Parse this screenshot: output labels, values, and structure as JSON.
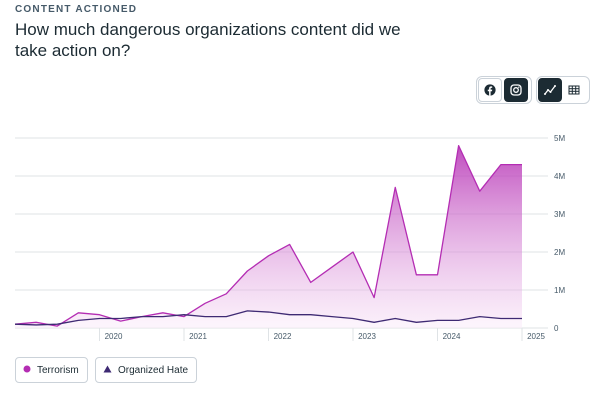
{
  "eyebrow": "CONTENT ACTIONED",
  "title": "How much dangerous organizations content did we take action on?",
  "controls": {
    "platform_facebook_icon": "facebook-icon",
    "platform_instagram_icon": "instagram-icon",
    "view_line_icon": "line-chart-icon",
    "view_table_icon": "table-icon"
  },
  "colors": {
    "terrorism": "#b42db3",
    "organized_hate": "#3e2a73",
    "grid": "#dfe3e6"
  },
  "chart_data": {
    "type": "area",
    "title": "How much dangerous organizations content did we take action on?",
    "x_tick_labels": [
      "2020",
      "2021",
      "2022",
      "2023",
      "2024",
      "2025"
    ],
    "y_tick_labels": [
      "0",
      "1M",
      "2M",
      "3M",
      "4M",
      "5M"
    ],
    "ylim": [
      0,
      5000000
    ],
    "xlim": [
      "2019-Q1",
      "2025-Q1"
    ],
    "grid": true,
    "legend_position": "bottom-left",
    "x": [
      "2019-Q1",
      "2019-Q2",
      "2019-Q3",
      "2019-Q4",
      "2020-Q1",
      "2020-Q2",
      "2020-Q3",
      "2020-Q4",
      "2021-Q1",
      "2021-Q2",
      "2021-Q3",
      "2021-Q4",
      "2022-Q1",
      "2022-Q2",
      "2022-Q3",
      "2022-Q4",
      "2023-Q1",
      "2023-Q2",
      "2023-Q3",
      "2023-Q4",
      "2024-Q1",
      "2024-Q2",
      "2024-Q3",
      "2024-Q4",
      "2025-Q1"
    ],
    "series": [
      {
        "name": "Terrorism",
        "values": [
          100000,
          150000,
          50000,
          400000,
          350000,
          180000,
          300000,
          400000,
          300000,
          650000,
          900000,
          1500000,
          1900000,
          2200000,
          1200000,
          1600000,
          2000000,
          800000,
          3700000,
          1400000,
          1400000,
          4800000,
          3600000,
          4300000,
          4300000
        ]
      },
      {
        "name": "Organized Hate",
        "values": [
          100000,
          80000,
          100000,
          200000,
          250000,
          250000,
          300000,
          300000,
          350000,
          300000,
          300000,
          450000,
          420000,
          350000,
          350000,
          300000,
          250000,
          150000,
          250000,
          150000,
          200000,
          200000,
          300000,
          250000,
          250000
        ]
      }
    ]
  },
  "legend": [
    {
      "label": "Terrorism",
      "marker": "circle"
    },
    {
      "label": "Organized Hate",
      "marker": "triangle"
    }
  ]
}
